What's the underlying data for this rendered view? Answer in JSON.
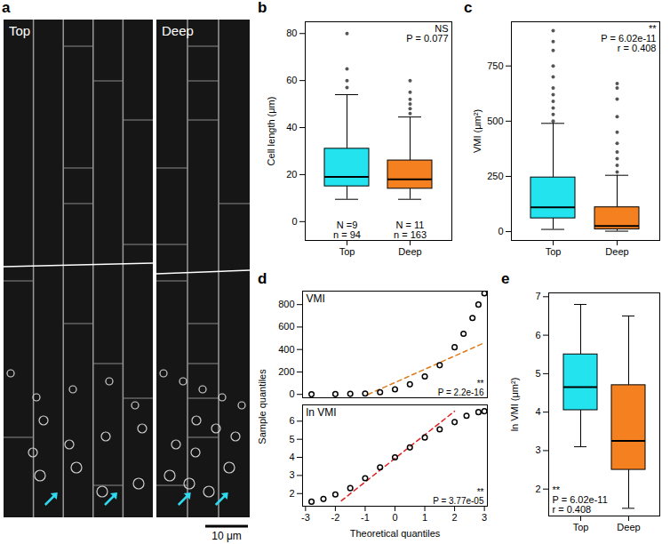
{
  "chart_data": [
    {
      "panel_label": "a",
      "type": "image",
      "labels": [
        "Top",
        "Deep"
      ],
      "scale_bar": "10 μm"
    },
    {
      "panel_label": "b",
      "type": "box",
      "categories": [
        "Top",
        "Deep"
      ],
      "colors": [
        "#22e3ee",
        "#f5801f"
      ],
      "ylabel": "Cell length (μm)",
      "ylim": [
        -8,
        85
      ],
      "yticks": [
        0,
        20,
        40,
        60,
        80
      ],
      "boxes": [
        {
          "whisker_low": 9.5,
          "q1": 15,
          "median": 19,
          "q3": 31,
          "whisker_high": 54,
          "outliers": [
            57,
            60,
            65,
            80
          ]
        },
        {
          "whisker_low": 9.5,
          "q1": 14,
          "median": 18,
          "q3": 26,
          "whisker_high": 44.5,
          "outliers": [
            46,
            48,
            50,
            52,
            55,
            60
          ]
        }
      ],
      "group_labels": [
        [
          "N =9",
          "n = 94"
        ],
        [
          "N = 11",
          "n = 163"
        ]
      ],
      "annotations": [
        "NS",
        "P = 0.077"
      ]
    },
    {
      "panel_label": "c",
      "type": "box",
      "categories": [
        "Top",
        "Deep"
      ],
      "colors": [
        "#22e3ee",
        "#f5801f"
      ],
      "ylabel": "VMI (μm²)",
      "ylim": [
        -40,
        950
      ],
      "yticks": [
        0,
        250,
        500,
        750
      ],
      "boxes": [
        {
          "whisker_low": 10,
          "q1": 60,
          "median": 110,
          "q3": 245,
          "whisker_high": 490,
          "outliers": [
            500,
            530,
            560,
            590,
            620,
            650,
            700,
            750,
            820,
            860,
            910
          ]
        },
        {
          "whisker_low": 2,
          "q1": 10,
          "median": 25,
          "q3": 110,
          "whisker_high": 255,
          "outliers": [
            270,
            300,
            330,
            360,
            400,
            450,
            520,
            600,
            650,
            670
          ]
        }
      ],
      "annotations": [
        "**",
        "P = 6.02e-11",
        "r = 0.408"
      ]
    },
    {
      "panel_label": "d",
      "type": "qq",
      "xlabel": "Theoretical quantiles",
      "ylabel": "Sample quantiles",
      "xlim": [
        -3.1,
        3.1
      ],
      "xticks": [
        -3,
        -2,
        -1,
        0,
        1,
        2,
        3
      ],
      "subplots": [
        {
          "title": "VMI",
          "ylim": [
            -30,
            920
          ],
          "yticks": [
            0,
            200,
            400,
            600,
            800
          ],
          "x": [
            -2.8,
            -2,
            -1.5,
            -1,
            -0.5,
            0,
            0.5,
            1,
            1.5,
            2,
            2.3,
            2.6,
            2.8,
            3
          ],
          "values": [
            1,
            3,
            5,
            8,
            20,
            45,
            90,
            160,
            260,
            420,
            540,
            680,
            800,
            900
          ],
          "reference_line": {
            "x": [
              -0.9,
              3
            ],
            "y": [
              0,
              460
            ],
            "color": "#e07b1a",
            "line_style": "dashed"
          },
          "annotations": [
            "**",
            "P = 2.2e-16"
          ]
        },
        {
          "title": "ln VMI",
          "ylim": [
            1.3,
            6.9
          ],
          "yticks": [
            2,
            3,
            4,
            5,
            6
          ],
          "x": [
            -2.8,
            -2.4,
            -2,
            -1.5,
            -1,
            -0.5,
            0,
            0.5,
            1,
            1.5,
            2,
            2.4,
            2.8,
            3
          ],
          "values": [
            1.55,
            1.7,
            1.95,
            2.3,
            2.85,
            3.45,
            4.0,
            4.55,
            5.1,
            5.55,
            5.95,
            6.3,
            6.5,
            6.55
          ],
          "reference_line": {
            "x": [
              -1.8,
              2
            ],
            "y": [
              1.6,
              6.55
            ],
            "color": "#e02020",
            "line_style": "dashed"
          },
          "annotations": [
            "**",
            "P = 3.77e-05"
          ]
        }
      ]
    },
    {
      "panel_label": "e",
      "type": "box",
      "categories": [
        "Top",
        "Deep"
      ],
      "colors": [
        "#22e3ee",
        "#f5801f"
      ],
      "ylabel": "ln VMI (μm²)",
      "ylim": [
        1.3,
        7.1
      ],
      "yticks": [
        2,
        3,
        4,
        5,
        6,
        7
      ],
      "boxes": [
        {
          "whisker_low": 3.1,
          "q1": 4.05,
          "median": 4.65,
          "q3": 5.5,
          "whisker_high": 6.8,
          "outliers": []
        },
        {
          "whisker_low": 1.5,
          "q1": 2.5,
          "median": 3.25,
          "q3": 4.7,
          "whisker_high": 6.5,
          "outliers": []
        }
      ],
      "annotations": [
        "**",
        "P = 6.02e-11",
        "r = 0.408"
      ]
    }
  ]
}
